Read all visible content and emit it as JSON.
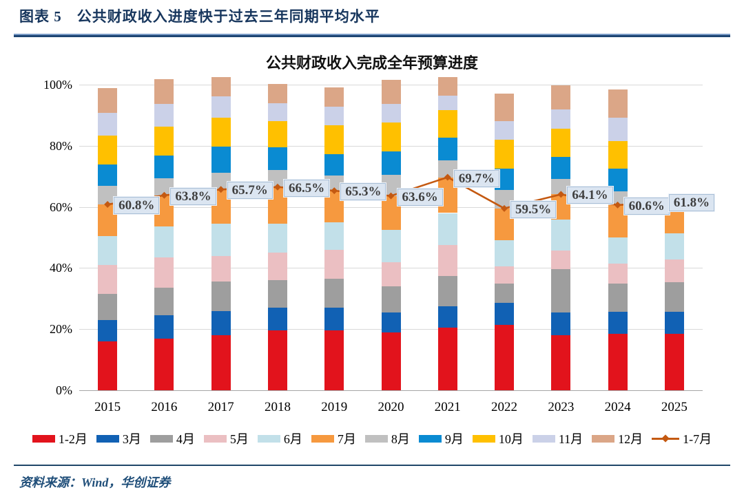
{
  "figure": {
    "caption_label": "图表 5",
    "caption_title": "公共财政收入进度快于过去三年同期平均水平",
    "source": "资料来源：Wind，华创证券"
  },
  "chart_data": {
    "type": "stacked-bar+line",
    "title": "公共财政收入完成全年预算进度",
    "categories": [
      "2015",
      "2016",
      "2017",
      "2018",
      "2019",
      "2020",
      "2021",
      "2022",
      "2023",
      "2024",
      "2025"
    ],
    "ylim": [
      0,
      100
    ],
    "ytick_values": [
      0,
      20,
      40,
      60,
      80,
      100
    ],
    "ytick_labels": [
      "0%",
      "20%",
      "40%",
      "60%",
      "80%",
      "100%"
    ],
    "grid": "horizontal",
    "legend_position": "bottom",
    "series": [
      {
        "name": "1-2月",
        "color": "#E2131C",
        "values": [
          16.0,
          17.0,
          18.0,
          19.5,
          19.5,
          19.0,
          20.5,
          21.5,
          18.0,
          18.5,
          18.5
        ]
      },
      {
        "name": "3月",
        "color": "#1161B4",
        "values": [
          7.0,
          7.5,
          8.0,
          7.5,
          7.5,
          6.5,
          7.0,
          7.0,
          7.4,
          7.2,
          7.2
        ]
      },
      {
        "name": "4月",
        "color": "#9E9E9E",
        "values": [
          8.5,
          9.0,
          9.5,
          9.0,
          9.5,
          8.5,
          10.0,
          6.5,
          14.2,
          9.3,
          9.7
        ]
      },
      {
        "name": "5月",
        "color": "#EBBFC2",
        "values": [
          9.5,
          10.0,
          8.5,
          9.0,
          9.5,
          8.0,
          10.0,
          5.5,
          6.2,
          6.4,
          7.5
        ]
      },
      {
        "name": "6月",
        "color": "#C2E0E9",
        "values": [
          9.5,
          10.0,
          10.5,
          9.5,
          9.0,
          10.5,
          10.5,
          8.5,
          10.0,
          8.6,
          8.4
        ]
      },
      {
        "name": "7月",
        "color": "#F6993F",
        "values": [
          10.3,
          10.3,
          11.2,
          12.0,
          10.3,
          11.1,
          11.7,
          10.5,
          8.3,
          10.6,
          10.5
        ]
      },
      {
        "name": "8月",
        "color": "#C0C0C0",
        "values": [
          6.0,
          5.5,
          5.5,
          5.5,
          5.0,
          7.0,
          5.5,
          6.0,
          5.1,
          4.5,
          0
        ]
      },
      {
        "name": "9月",
        "color": "#0A8BD2",
        "values": [
          7.0,
          7.5,
          8.5,
          7.5,
          7.0,
          7.5,
          7.5,
          7.0,
          7.2,
          7.5,
          0
        ]
      },
      {
        "name": "10月",
        "color": "#FFC000",
        "values": [
          9.5,
          9.5,
          9.5,
          8.5,
          9.5,
          9.5,
          9.0,
          9.5,
          9.3,
          9.0,
          0
        ]
      },
      {
        "name": "11月",
        "color": "#CBD1E8",
        "values": [
          7.5,
          7.5,
          7.0,
          6.0,
          6.0,
          6.0,
          4.8,
          6.0,
          6.3,
          7.5,
          0
        ]
      },
      {
        "name": "12月",
        "color": "#DBA687",
        "values": [
          8.0,
          8.0,
          6.3,
          6.3,
          6.2,
          8.0,
          6.0,
          9.0,
          7.8,
          9.4,
          0
        ]
      }
    ],
    "line_series": {
      "name": "1-7月",
      "color": "#C45911",
      "values": [
        60.8,
        63.8,
        65.7,
        66.5,
        65.3,
        63.6,
        69.7,
        59.5,
        64.1,
        60.6,
        61.8
      ],
      "labels": [
        "60.8%",
        "63.8%",
        "65.7%",
        "66.5%",
        "65.3%",
        "63.6%",
        "69.7%",
        "59.5%",
        "64.1%",
        "60.6%",
        "61.8%"
      ]
    }
  }
}
